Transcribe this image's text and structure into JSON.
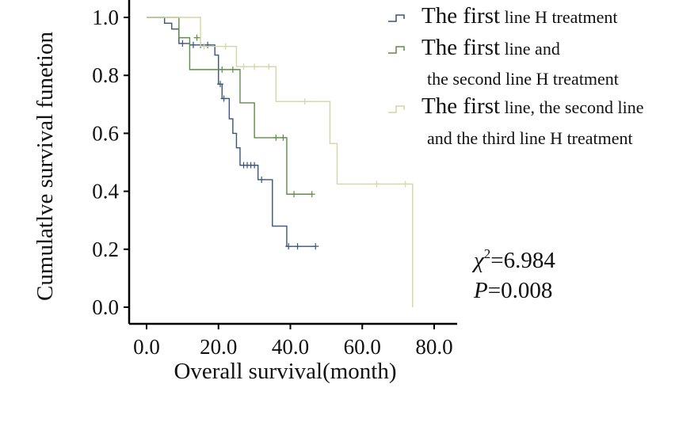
{
  "chart_data": {
    "type": "line",
    "step": true,
    "xlabel": "Overall survival(month)",
    "ylabel": "Cumulatlve survival funetion",
    "xlim": [
      0,
      80
    ],
    "ylim": [
      0,
      1
    ],
    "x_ticks": [
      "0.0",
      "20.0",
      "40.0",
      "60.0",
      "80.0"
    ],
    "y_ticks": [
      "0.0",
      "0.2",
      "0.4",
      "0.6",
      "0.8",
      "1.0"
    ],
    "grid": false,
    "legend_position": "top-right",
    "series": [
      {
        "legend_lines": [
          {
            "big": "The first",
            "small": " line H treatment"
          }
        ],
        "color": "#3b5478",
        "points": [
          [
            0,
            1.0
          ],
          [
            5,
            1.0
          ],
          [
            5,
            0.98
          ],
          [
            7,
            0.98
          ],
          [
            7,
            0.96
          ],
          [
            9,
            0.96
          ],
          [
            9,
            0.91
          ],
          [
            12,
            0.91
          ],
          [
            12,
            0.905
          ],
          [
            19,
            0.905
          ],
          [
            19,
            0.87
          ],
          [
            20,
            0.87
          ],
          [
            20,
            0.77
          ],
          [
            21,
            0.77
          ],
          [
            21,
            0.72
          ],
          [
            23,
            0.72
          ],
          [
            23,
            0.65
          ],
          [
            24,
            0.65
          ],
          [
            24,
            0.6
          ],
          [
            25,
            0.6
          ],
          [
            25,
            0.55
          ],
          [
            26,
            0.55
          ],
          [
            26,
            0.49
          ],
          [
            31,
            0.49
          ],
          [
            31,
            0.44
          ],
          [
            35,
            0.44
          ],
          [
            35,
            0.28
          ],
          [
            39,
            0.28
          ],
          [
            39,
            0.21
          ],
          [
            47,
            0.21
          ]
        ],
        "censor": [
          [
            10,
            0.91
          ],
          [
            13,
            0.905
          ],
          [
            15,
            0.905
          ],
          [
            17,
            0.905
          ],
          [
            20.5,
            0.77
          ],
          [
            21.5,
            0.72
          ],
          [
            27,
            0.49
          ],
          [
            28,
            0.49
          ],
          [
            29,
            0.49
          ],
          [
            30,
            0.49
          ],
          [
            32,
            0.44
          ],
          [
            39.5,
            0.21
          ],
          [
            42,
            0.21
          ],
          [
            47,
            0.21
          ]
        ]
      },
      {
        "legend_lines": [
          {
            "big": "The first",
            "small": " line and"
          },
          {
            "big": "",
            "small": "the second line H treatment"
          }
        ],
        "color": "#5f8c48",
        "points": [
          [
            0,
            1.0
          ],
          [
            9,
            1.0
          ],
          [
            9,
            0.93
          ],
          [
            12,
            0.93
          ],
          [
            12,
            0.82
          ],
          [
            26,
            0.82
          ],
          [
            26,
            0.705
          ],
          [
            30,
            0.705
          ],
          [
            30,
            0.585
          ],
          [
            38,
            0.585
          ],
          [
            38,
            0.585
          ],
          [
            39,
            0.585
          ],
          [
            39,
            0.39
          ],
          [
            46,
            0.39
          ]
        ],
        "censor": [
          [
            14,
            0.93
          ],
          [
            21,
            0.82
          ],
          [
            24,
            0.82
          ],
          [
            36,
            0.585
          ],
          [
            38,
            0.585
          ],
          [
            41,
            0.39
          ],
          [
            46,
            0.39
          ]
        ]
      },
      {
        "legend_lines": [
          {
            "big": "The first",
            "small": " line, the second line"
          },
          {
            "big": "",
            "small": "and the third line H treatment"
          }
        ],
        "color": "#d3d6a3",
        "points": [
          [
            0,
            1.0
          ],
          [
            15,
            1.0
          ],
          [
            15,
            0.9
          ],
          [
            25,
            0.9
          ],
          [
            25,
            0.83
          ],
          [
            36,
            0.83
          ],
          [
            36,
            0.71
          ],
          [
            51,
            0.71
          ],
          [
            51,
            0.565
          ],
          [
            53,
            0.565
          ],
          [
            53,
            0.425
          ],
          [
            74,
            0.425
          ],
          [
            74,
            0.0
          ]
        ],
        "censor": [
          [
            16,
            0.9
          ],
          [
            22,
            0.9
          ],
          [
            27,
            0.83
          ],
          [
            30,
            0.83
          ],
          [
            34,
            0.83
          ],
          [
            44,
            0.71
          ],
          [
            64,
            0.425
          ],
          [
            72,
            0.425
          ]
        ]
      }
    ],
    "annotations": {
      "chi_symbol": "χ",
      "chi_sup": "2",
      "chi_value": "=6.984",
      "p_symbol": "P",
      "p_value": "=0.008"
    }
  }
}
